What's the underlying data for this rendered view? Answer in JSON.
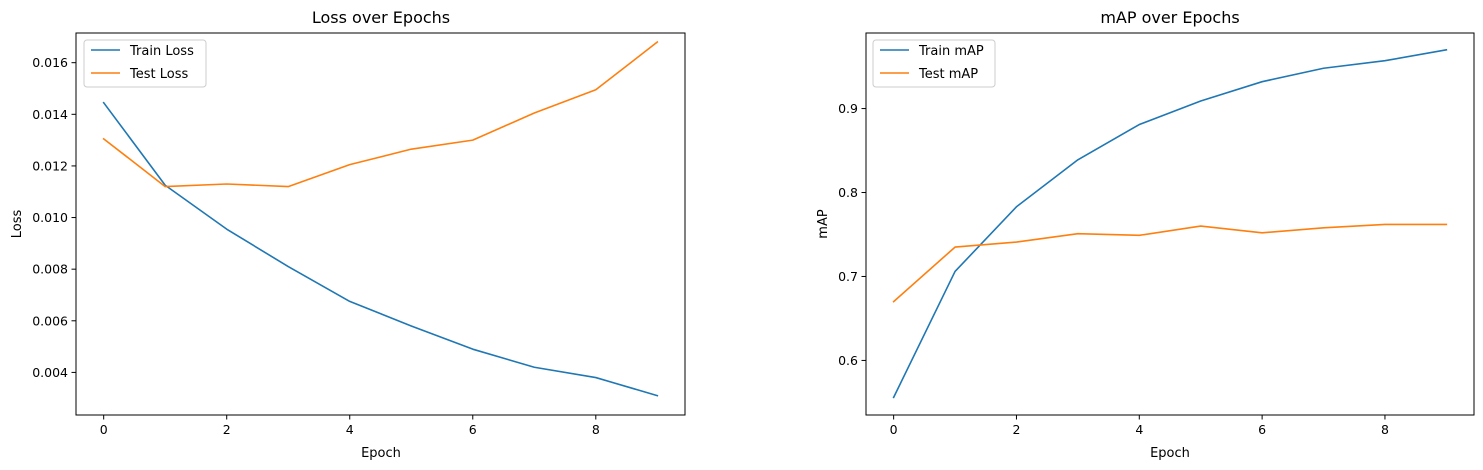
{
  "chart_data": [
    {
      "type": "line",
      "title": "Loss over Epochs",
      "xlabel": "Epoch",
      "ylabel": "Loss",
      "xlim": [
        -0.45,
        9.45
      ],
      "ylim": [
        0.00235,
        0.01715
      ],
      "xticks": [
        0,
        2,
        4,
        6,
        8
      ],
      "xtick_labels": [
        "0",
        "2",
        "4",
        "6",
        "8"
      ],
      "yticks": [
        0.004,
        0.006,
        0.008,
        0.01,
        0.012,
        0.014,
        0.016
      ],
      "ytick_labels": [
        "0.004",
        "0.006",
        "0.008",
        "0.010",
        "0.012",
        "0.014",
        "0.016"
      ],
      "grid": false,
      "legend_position": "upper-left",
      "x": [
        0,
        1,
        2,
        3,
        4,
        5,
        6,
        7,
        8,
        9
      ],
      "series": [
        {
          "name": "Train Loss",
          "color": "#1f77b4",
          "values": [
            0.01445,
            0.01125,
            0.00955,
            0.0081,
            0.00675,
            0.0058,
            0.0049,
            0.0042,
            0.0038,
            0.0031
          ]
        },
        {
          "name": "Test Loss",
          "color": "#ff7f0e",
          "values": [
            0.01305,
            0.0112,
            0.0113,
            0.0112,
            0.01205,
            0.01265,
            0.013,
            0.01405,
            0.01495,
            0.0168
          ]
        }
      ]
    },
    {
      "type": "line",
      "title": "mAP over Epochs",
      "xlabel": "Epoch",
      "ylabel": "mAP",
      "xlim": [
        -0.45,
        9.45
      ],
      "ylim": [
        0.535,
        0.99
      ],
      "xticks": [
        0,
        2,
        4,
        6,
        8
      ],
      "xtick_labels": [
        "0",
        "2",
        "4",
        "6",
        "8"
      ],
      "yticks": [
        0.6,
        0.7,
        0.8,
        0.9
      ],
      "ytick_labels": [
        "0.6",
        "0.7",
        "0.8",
        "0.9"
      ],
      "grid": false,
      "legend_position": "upper-left",
      "x": [
        0,
        1,
        2,
        3,
        4,
        5,
        6,
        7,
        8,
        9
      ],
      "series": [
        {
          "name": "Train mAP",
          "color": "#1f77b4",
          "values": [
            0.556,
            0.706,
            0.783,
            0.839,
            0.881,
            0.909,
            0.932,
            0.948,
            0.957,
            0.97
          ]
        },
        {
          "name": "Test mAP",
          "color": "#ff7f0e",
          "values": [
            0.67,
            0.735,
            0.741,
            0.751,
            0.749,
            0.76,
            0.752,
            0.758,
            0.762,
            0.762
          ]
        }
      ]
    }
  ]
}
